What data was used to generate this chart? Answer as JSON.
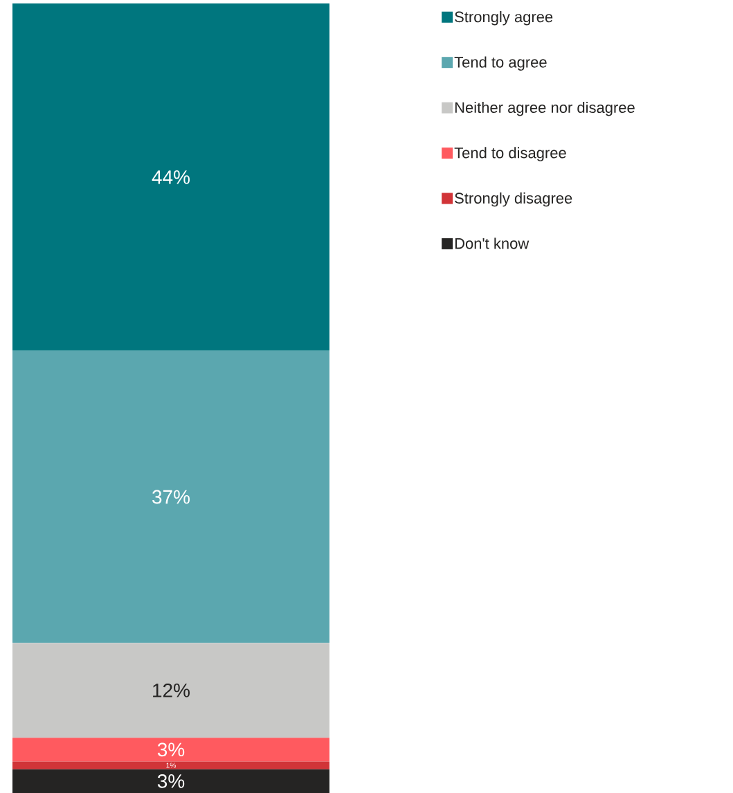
{
  "chart_data": {
    "type": "bar",
    "stacked": true,
    "categories": [
      null
    ],
    "legend": "top right",
    "series": [
      {
        "name": "Don't know",
        "color": "#252423",
        "values": [
          3
        ],
        "value_labels": [
          "3%"
        ]
      },
      {
        "name": "Strongly disagree",
        "color": "#d13438",
        "values": [
          1
        ],
        "value_labels": [
          "1%"
        ]
      },
      {
        "name": "Tend to disagree",
        "color": "#ff5a5f",
        "values": [
          3
        ],
        "value_labels": [
          "3%"
        ]
      },
      {
        "name": "Neither agree nor disagree",
        "color": "#c8c8c6",
        "values": [
          12
        ],
        "value_labels": [
          "12%"
        ]
      },
      {
        "name": "Tend to agree",
        "color": "#5ba7af",
        "values": [
          37
        ],
        "value_labels": [
          "37%"
        ]
      },
      {
        "name": "Strongly agree",
        "color": "#00767e",
        "values": [
          44
        ],
        "value_labels": [
          "44%"
        ]
      }
    ]
  }
}
